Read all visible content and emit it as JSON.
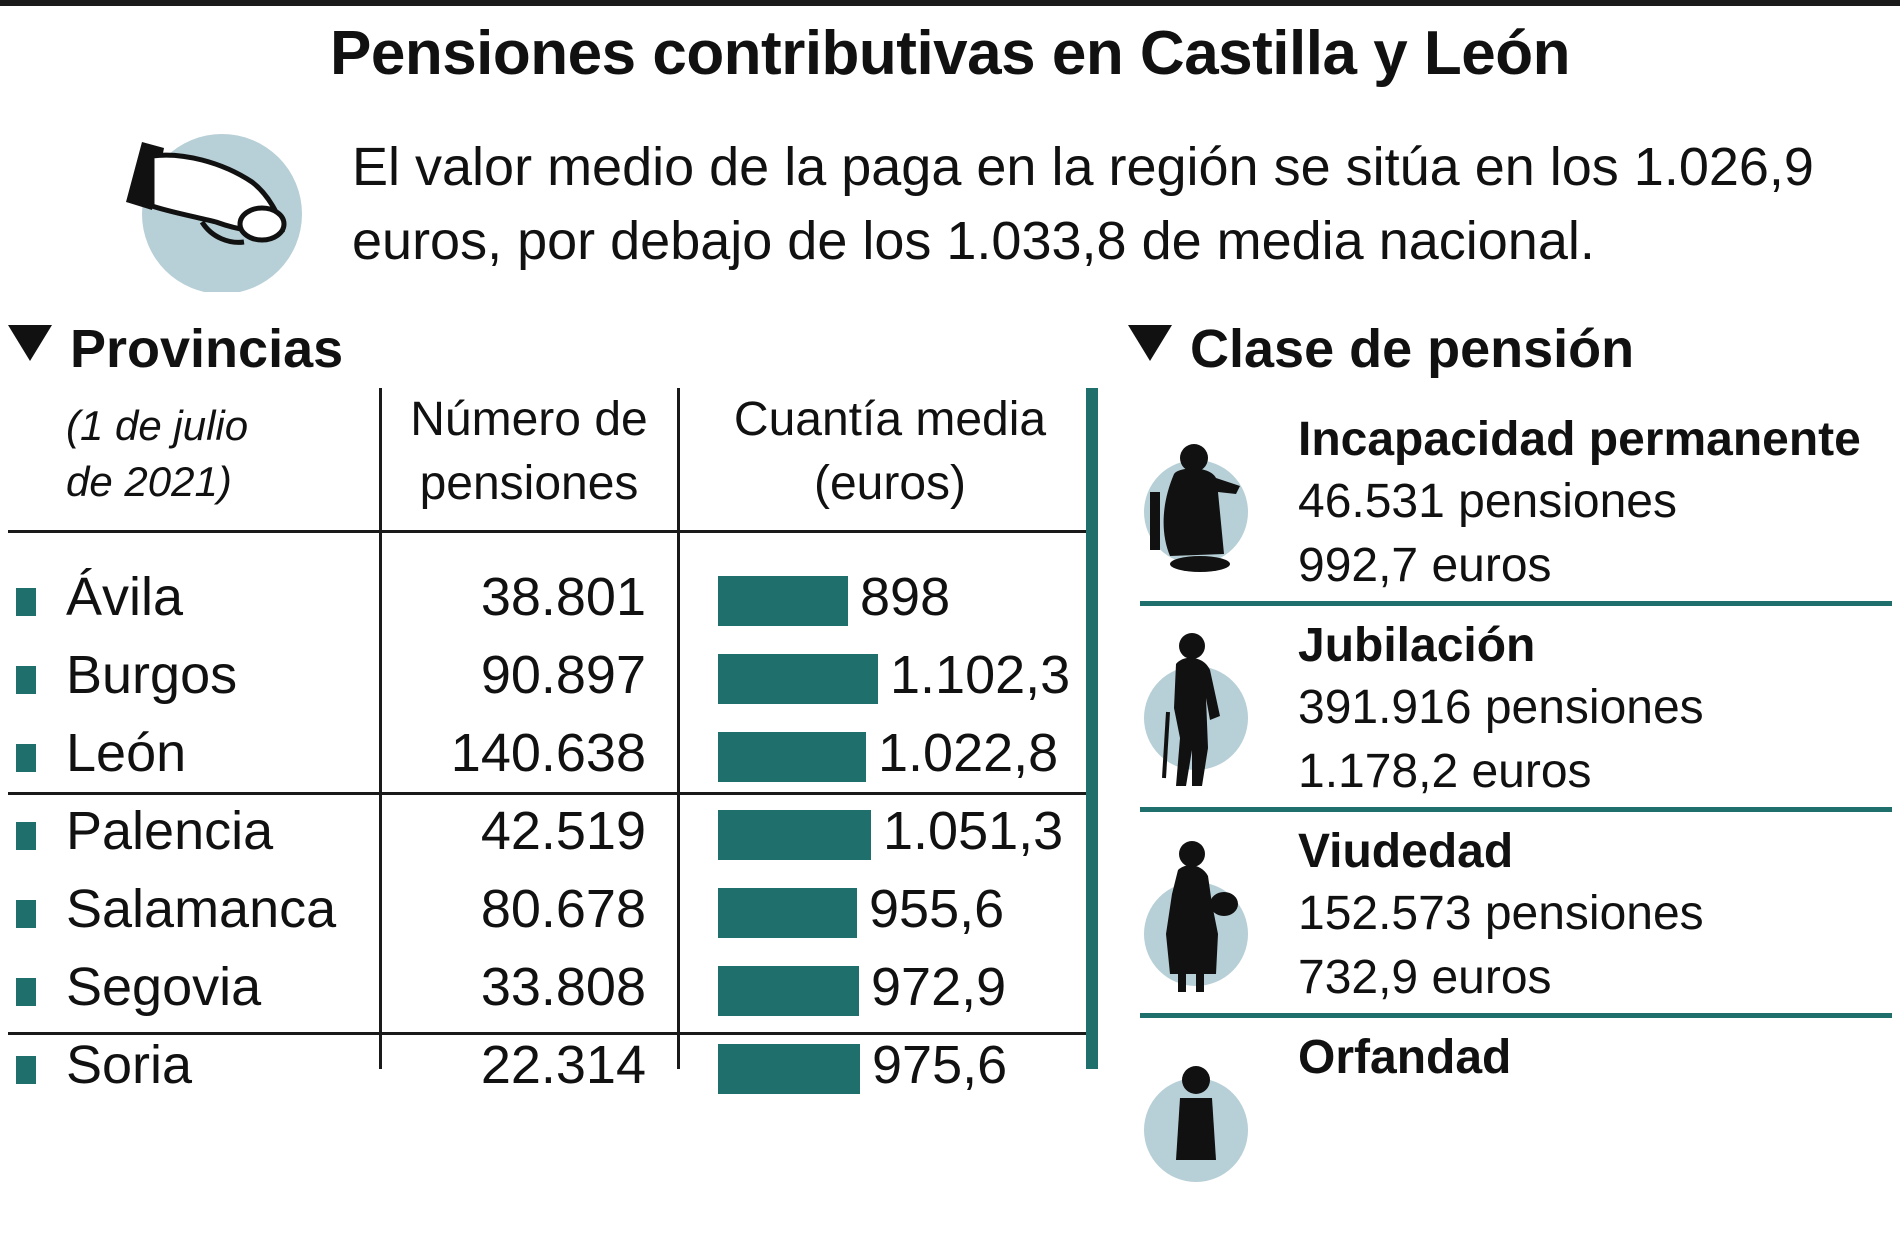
{
  "title": "Pensiones contributivas en Castilla y León",
  "subtitle": "El valor medio de la paga en la región se sitúa en los 1.026,9\neuros, por debajo de los 1.033,8 de media nacional.",
  "colors": {
    "accent": "#1f6f6d",
    "icon_circle": "#b7cfd6",
    "ink": "#111111"
  },
  "provinces_section": {
    "heading": "Provincias",
    "date_note": "(1 de julio\nde 2021)",
    "col_count_header": "Número de\npensiones",
    "col_amount_header": "Cuantía media\n(euros)"
  },
  "pension_class_section": {
    "heading": "Clase de pensión",
    "items": [
      {
        "name": "Incapacidad permanente",
        "count": "46.531 pensiones",
        "amount": "992,7 euros",
        "icon": "disabled-person-icon"
      },
      {
        "name": "Jubilación",
        "count": "391.916 pensiones",
        "amount": "1.178,2 euros",
        "icon": "elderly-person-icon"
      },
      {
        "name": "Viudedad",
        "count": "152.573 pensiones",
        "amount": "732,9 euros",
        "icon": "widow-icon"
      },
      {
        "name": "Orfandad",
        "count": "",
        "amount": "",
        "icon": "orphan-icon"
      }
    ]
  },
  "chart_data": {
    "type": "bar",
    "categories": [
      "Ávila",
      "Burgos",
      "León",
      "Palencia",
      "Salamanca",
      "Segovia",
      "Soria"
    ],
    "pensions": [
      "38.801",
      "90.897",
      "140.638",
      "42.519",
      "80.678",
      "33.808",
      "22.314"
    ],
    "value_labels": [
      "898",
      "1.102,3",
      "1.022,8",
      "1.051,3",
      "955,6",
      "972,9",
      "975,6"
    ],
    "values": [
      898,
      1102.3,
      1022.8,
      1051.3,
      955.6,
      972.9,
      975.6
    ],
    "xlabel": "Cuantía media (euros)",
    "ylabel": ""
  }
}
